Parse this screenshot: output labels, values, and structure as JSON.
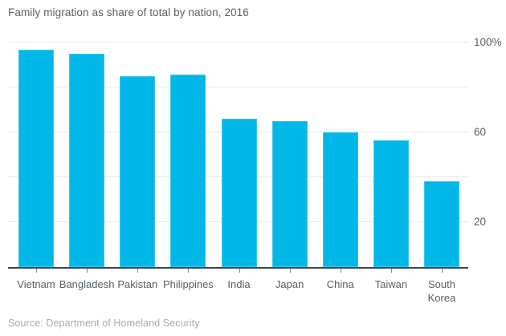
{
  "title": "Family migration as share of total by nation, 2016",
  "source": "Source: Department of Homeland Security",
  "colors": {
    "bar": "#00b7e8",
    "grid": "#e9e9e9",
    "axis": "#3f4346",
    "tick_mark": "#85888a",
    "axis_text": "#555f66",
    "title_text": "#5a5f62",
    "source_text": "#a9abad"
  },
  "chart_data": {
    "type": "bar",
    "title": "Family migration as share of total by nation, 2016",
    "categories": [
      "Vietnam",
      "Bangladesh",
      "Pakistan",
      "Philippines",
      "India",
      "Japan",
      "China",
      "Taiwan",
      "South Korea"
    ],
    "values": [
      96.5,
      95,
      85,
      85.5,
      66,
      65,
      60,
      56.5,
      38
    ],
    "unit": "%",
    "xlabel": "",
    "ylabel": "",
    "ylim": [
      0,
      100
    ],
    "grid": true,
    "gridline_values": [
      20,
      40,
      60,
      80,
      100
    ],
    "yticks": [
      {
        "value": 100,
        "label": "100%"
      },
      {
        "value": 60,
        "label": "60"
      },
      {
        "value": 20,
        "label": "20"
      }
    ],
    "legend": false,
    "source": "Source: Department of Homeland Security"
  }
}
